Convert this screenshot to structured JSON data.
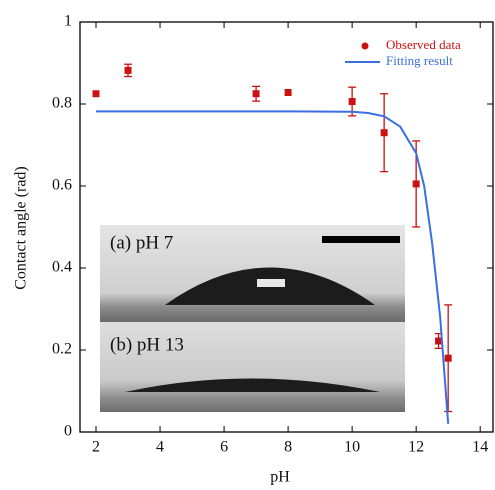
{
  "chart_data": {
    "type": "scatter",
    "xlabel": "pH",
    "ylabel": "Contact angle (rad)",
    "xlim": [
      1.5,
      14.4
    ],
    "ylim": [
      0,
      1
    ],
    "xticks": [
      2,
      4,
      6,
      8,
      10,
      12,
      14
    ],
    "yticks": [
      0,
      0.2,
      0.4,
      0.6,
      0.8,
      1
    ],
    "legend": "upper right",
    "annotations": [
      "(a) pH 7",
      "(b) pH 13"
    ],
    "series": [
      {
        "name": "Observed data",
        "type": "scatter",
        "color": "#cc1111",
        "x": [
          2,
          3,
          7,
          8,
          10,
          11,
          12,
          12.7,
          13
        ],
        "values": [
          0.825,
          0.882,
          0.825,
          0.828,
          0.806,
          0.73,
          0.605,
          0.222,
          0.18
        ],
        "errors": [
          null,
          0.015,
          0.018,
          null,
          0.035,
          0.095,
          0.105,
          0.018,
          0.13
        ]
      },
      {
        "name": "Fitting result",
        "type": "line",
        "color": "#3a6fe0",
        "x": [
          2,
          4,
          6,
          8,
          10,
          10.5,
          11,
          11.5,
          12,
          12.25,
          12.5,
          12.75,
          13
        ],
        "values": [
          0.782,
          0.782,
          0.782,
          0.782,
          0.781,
          0.778,
          0.77,
          0.745,
          0.68,
          0.6,
          0.46,
          0.28,
          0.02
        ]
      }
    ]
  }
}
